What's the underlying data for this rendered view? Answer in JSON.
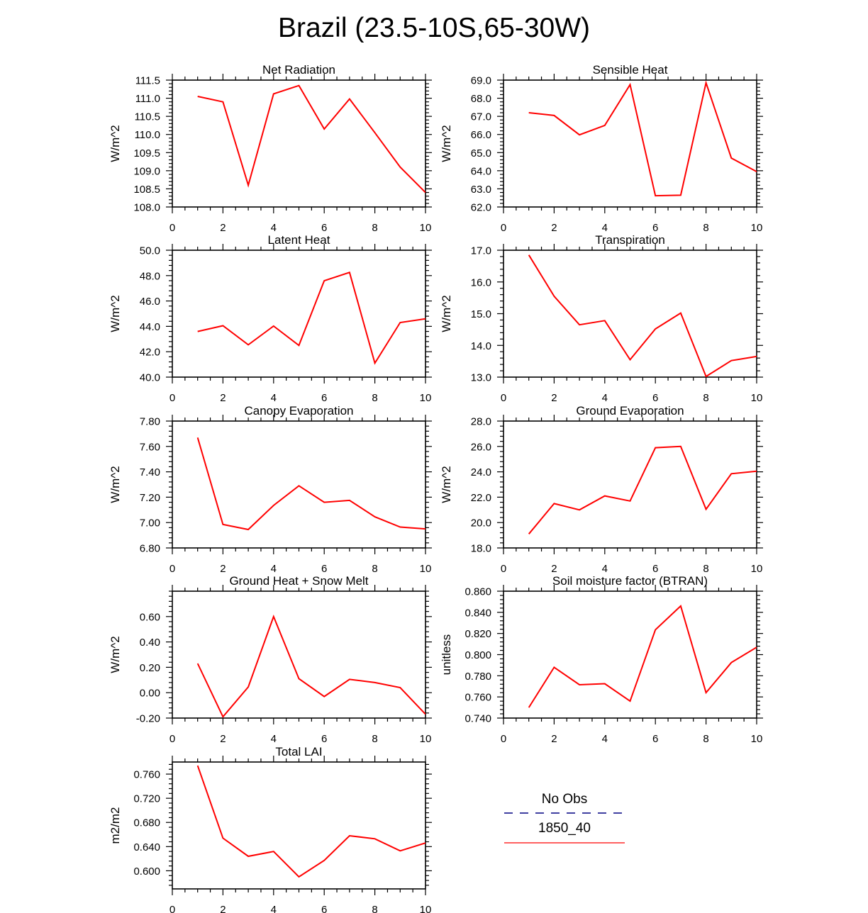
{
  "figure": {
    "title": "Brazil (23.5-10S,65-30W)"
  },
  "chart_data": [
    {
      "type": "line",
      "title": "Net Radiation",
      "ylabel": "W/m^2",
      "x": [
        1,
        2,
        3,
        4,
        5,
        6,
        7,
        8,
        9,
        10
      ],
      "series": [
        {
          "name": "1850_40",
          "color": "#ff0000",
          "values": [
            111.05,
            110.9,
            108.6,
            111.12,
            111.35,
            110.15,
            110.98,
            110.05,
            109.1,
            108.4
          ]
        }
      ],
      "xlim": [
        0,
        10
      ],
      "ylim": [
        108.0,
        111.5
      ],
      "xticks": [
        "0",
        "2",
        "4",
        "6",
        "8",
        "10"
      ],
      "yticks": [
        "108.0",
        "108.5",
        "109.0",
        "109.5",
        "110.0",
        "110.5",
        "111.0",
        "111.5"
      ]
    },
    {
      "type": "line",
      "title": "Sensible Heat",
      "ylabel": "W/m^2",
      "x": [
        1,
        2,
        3,
        4,
        5,
        6,
        7,
        8,
        9,
        10
      ],
      "series": [
        {
          "name": "1850_40",
          "color": "#ff0000",
          "values": [
            67.2,
            67.05,
            65.98,
            66.5,
            68.75,
            62.62,
            62.65,
            68.85,
            64.7,
            63.95
          ]
        }
      ],
      "xlim": [
        0,
        10
      ],
      "ylim": [
        62.0,
        69.0
      ],
      "xticks": [
        "0",
        "2",
        "4",
        "6",
        "8",
        "10"
      ],
      "yticks": [
        "62.0",
        "63.0",
        "64.0",
        "65.0",
        "66.0",
        "67.0",
        "68.0",
        "69.0"
      ]
    },
    {
      "type": "line",
      "title": "Latent Heat",
      "ylabel": "W/m^2",
      "x": [
        1,
        2,
        3,
        4,
        5,
        6,
        7,
        8,
        9,
        10
      ],
      "series": [
        {
          "name": "1850_40",
          "color": "#ff0000",
          "values": [
            43.6,
            44.05,
            42.55,
            44.02,
            42.5,
            47.6,
            48.25,
            41.1,
            44.3,
            44.6
          ]
        }
      ],
      "xlim": [
        0,
        10
      ],
      "ylim": [
        40.0,
        50.0
      ],
      "xticks": [
        "0",
        "2",
        "4",
        "6",
        "8",
        "10"
      ],
      "yticks": [
        "40.0",
        "42.0",
        "44.0",
        "46.0",
        "48.0",
        "50.0"
      ]
    },
    {
      "type": "line",
      "title": "Transpiration",
      "ylabel": "W/m^2",
      "x": [
        1,
        2,
        3,
        4,
        5,
        6,
        7,
        8,
        9,
        10
      ],
      "series": [
        {
          "name": "1850_40",
          "color": "#ff0000",
          "values": [
            16.85,
            15.55,
            14.65,
            14.78,
            13.55,
            14.52,
            15.02,
            13.02,
            13.52,
            13.65
          ]
        }
      ],
      "xlim": [
        0,
        10
      ],
      "ylim": [
        13.0,
        17.0
      ],
      "xticks": [
        "0",
        "2",
        "4",
        "6",
        "8",
        "10"
      ],
      "yticks": [
        "13.0",
        "14.0",
        "15.0",
        "16.0",
        "17.0"
      ]
    },
    {
      "type": "line",
      "title": "Canopy Evaporation",
      "ylabel": "W/m^2",
      "x": [
        1,
        2,
        3,
        4,
        5,
        6,
        7,
        8,
        9,
        10
      ],
      "series": [
        {
          "name": "1850_40",
          "color": "#ff0000",
          "values": [
            7.67,
            6.985,
            6.945,
            7.135,
            7.29,
            7.16,
            7.175,
            7.045,
            6.965,
            6.95
          ]
        }
      ],
      "xlim": [
        0,
        10
      ],
      "ylim": [
        6.8,
        7.8
      ],
      "xticks": [
        "0",
        "2",
        "4",
        "6",
        "8",
        "10"
      ],
      "yticks": [
        "6.80",
        "7.00",
        "7.20",
        "7.40",
        "7.60",
        "7.80"
      ]
    },
    {
      "type": "line",
      "title": "Ground Evaporation",
      "ylabel": "W/m^2",
      "x": [
        1,
        2,
        3,
        4,
        5,
        6,
        7,
        8,
        9,
        10
      ],
      "series": [
        {
          "name": "1850_40",
          "color": "#ff0000",
          "values": [
            19.1,
            21.5,
            21.0,
            22.1,
            21.7,
            25.9,
            26.0,
            21.05,
            23.85,
            24.05
          ]
        }
      ],
      "xlim": [
        0,
        10
      ],
      "ylim": [
        18.0,
        28.0
      ],
      "xticks": [
        "0",
        "2",
        "4",
        "6",
        "8",
        "10"
      ],
      "yticks": [
        "18.0",
        "20.0",
        "22.0",
        "24.0",
        "26.0",
        "28.0"
      ]
    },
    {
      "type": "line",
      "title": "Ground Heat + Snow Melt",
      "ylabel": "W/m^2",
      "x": [
        1,
        2,
        3,
        4,
        5,
        6,
        7,
        8,
        9,
        10
      ],
      "series": [
        {
          "name": "1850_40",
          "color": "#ff0000",
          "values": [
            0.23,
            -0.19,
            0.045,
            0.6,
            0.11,
            -0.03,
            0.105,
            0.08,
            0.04,
            -0.17
          ]
        }
      ],
      "xlim": [
        0,
        10
      ],
      "ylim": [
        -0.2,
        0.8
      ],
      "xticks": [
        "0",
        "2",
        "4",
        "6",
        "8",
        "10"
      ],
      "yticks": [
        "-0.20",
        "0.00",
        "0.20",
        "0.40",
        "0.60"
      ]
    },
    {
      "type": "line",
      "title": "Soil moisture factor (BTRAN)",
      "ylabel": "unitless",
      "x": [
        1,
        2,
        3,
        4,
        5,
        6,
        7,
        8,
        9,
        10
      ],
      "series": [
        {
          "name": "1850_40",
          "color": "#ff0000",
          "values": [
            0.75,
            0.788,
            0.7715,
            0.7725,
            0.756,
            0.8235,
            0.846,
            0.764,
            0.7925,
            0.807
          ]
        }
      ],
      "xlim": [
        0,
        10
      ],
      "ylim": [
        0.74,
        0.86
      ],
      "xticks": [
        "0",
        "2",
        "4",
        "6",
        "8",
        "10"
      ],
      "yticks": [
        "0.740",
        "0.760",
        "0.780",
        "0.800",
        "0.820",
        "0.840",
        "0.860"
      ]
    },
    {
      "type": "line",
      "title": "Total LAI",
      "ylabel": "m2/m2",
      "x": [
        1,
        2,
        3,
        4,
        5,
        6,
        7,
        8,
        9,
        10
      ],
      "series": [
        {
          "name": "1850_40",
          "color": "#ff0000",
          "values": [
            0.774,
            0.654,
            0.624,
            0.632,
            0.59,
            0.617,
            0.658,
            0.653,
            0.633,
            0.646
          ]
        }
      ],
      "xlim": [
        0,
        10
      ],
      "ylim": [
        0.57,
        0.78
      ],
      "xticks": [
        "0",
        "2",
        "4",
        "6",
        "8",
        "10"
      ],
      "yticks": [
        "0.600",
        "0.640",
        "0.680",
        "0.720",
        "0.760"
      ]
    }
  ],
  "legend": {
    "entries": [
      {
        "label": "No Obs",
        "color": "#000080",
        "style": "dashed"
      },
      {
        "label": "1850_40",
        "color": "#ff0000",
        "style": "solid"
      }
    ]
  }
}
